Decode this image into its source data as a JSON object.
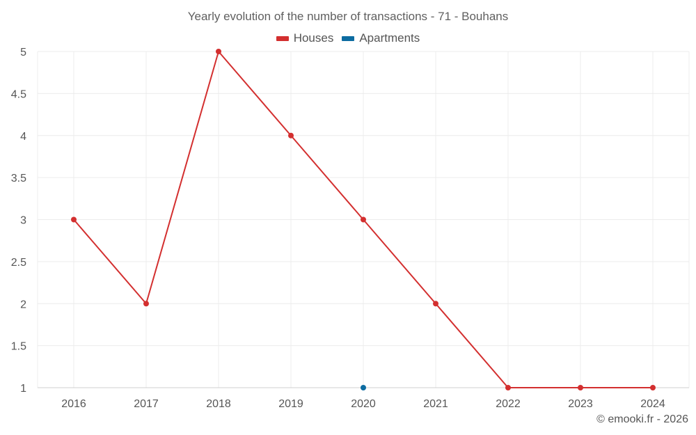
{
  "header": {
    "title": "Yearly evolution of the number of transactions - 71 - Bouhans"
  },
  "legend": {
    "items": [
      {
        "label": "Houses",
        "color": "#d32f2f"
      },
      {
        "label": "Apartments",
        "color": "#0d6ca1"
      }
    ]
  },
  "footer": {
    "credit": "© emooki.fr - 2026"
  },
  "chart_data": {
    "type": "line",
    "title": "Yearly evolution of the number of transactions - 71 - Bouhans",
    "xlabel": "",
    "ylabel": "",
    "categories": [
      "2016",
      "2017",
      "2018",
      "2019",
      "2020",
      "2021",
      "2022",
      "2023",
      "2024"
    ],
    "ylim": [
      1,
      5
    ],
    "yticks": [
      "1",
      "1.5",
      "2",
      "2.5",
      "3",
      "3.5",
      "4",
      "4.5",
      "5"
    ],
    "grid": true,
    "legend_position": "top-center",
    "series": [
      {
        "name": "Houses",
        "color": "#d32f2f",
        "values": [
          3,
          2,
          5,
          4,
          3,
          2,
          1,
          1,
          1
        ]
      },
      {
        "name": "Apartments",
        "color": "#0d6ca1",
        "values": [
          null,
          null,
          null,
          null,
          1,
          null,
          null,
          null,
          null
        ]
      }
    ]
  }
}
